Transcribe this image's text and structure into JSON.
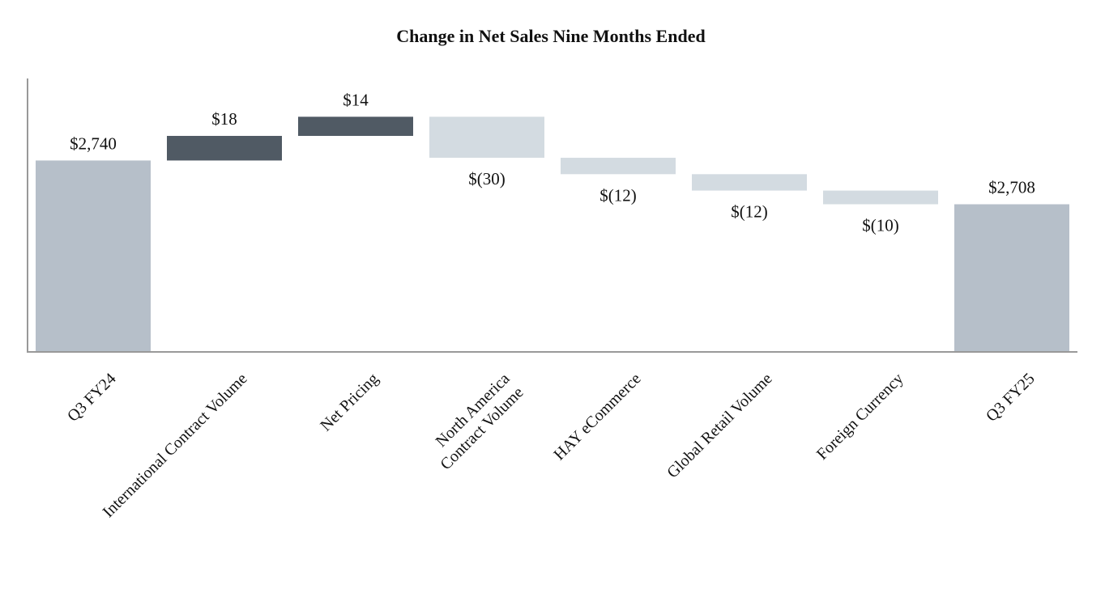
{
  "chart_data": {
    "type": "waterfall",
    "title": "Change in Net Sales Nine Months Ended",
    "categories": [
      "Q3 FY24",
      "International Contract Volume",
      "Net Pricing",
      "North America\nContract Volume",
      "HAY eCommerce",
      "Global Retail Volume",
      "Foreign Currency",
      "Q3 FY25"
    ],
    "values": [
      2740,
      18,
      14,
      -30,
      -12,
      -12,
      -10,
      2708
    ],
    "kinds": [
      "total",
      "delta",
      "delta",
      "delta",
      "delta",
      "delta",
      "delta",
      "total"
    ],
    "data_labels": [
      "$2,740",
      "$18",
      "$14",
      "$(30)",
      "$(12)",
      "$(12)",
      "$(10)",
      "$2,708"
    ],
    "ylim": [
      2600,
      2800
    ],
    "grid": false,
    "colors": {
      "total": "#b6bfc9",
      "increase": "#505a64",
      "decrease": "#d3dbe1",
      "axis": "#999999"
    }
  }
}
